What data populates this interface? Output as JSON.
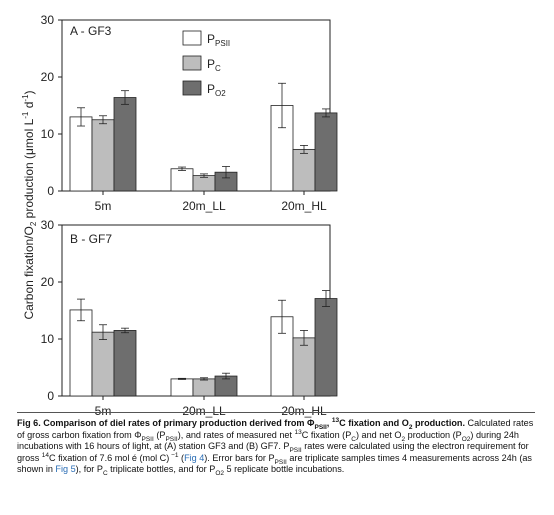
{
  "colors": {
    "P_PSII": "#ffffff",
    "P_C": "#bdbdbd",
    "P_O2": "#6e6e6e",
    "axis": "#222222"
  },
  "shared": {
    "ylabel_main": "Carbon fixation/O",
    "ylabel_sub": "2",
    "ylabel_tail": " production (μmol L",
    "ylabel_sup1": "-1",
    "ylabel_mid": " d",
    "ylabel_sup2": "-1",
    "ylabel_end": ")"
  },
  "legend": [
    {
      "key": "P_PSII",
      "main": "P",
      "sub": "PSII"
    },
    {
      "key": "P_C",
      "main": "P",
      "sub": "C"
    },
    {
      "key": "P_O2",
      "main": "P",
      "sub": "O2"
    }
  ],
  "chart_data": [
    {
      "type": "bar",
      "title": "A - GF3",
      "categories": [
        "5m",
        "20m_LL",
        "20m_HL"
      ],
      "ylim": [
        0,
        30
      ],
      "yticks": [
        "0",
        "10",
        "20",
        "30"
      ],
      "series": [
        {
          "name": "P_PSII",
          "values": [
            13.0,
            3.9,
            15.0
          ],
          "errors": [
            1.6,
            0.3,
            3.9
          ]
        },
        {
          "name": "P_C",
          "values": [
            12.5,
            2.7,
            7.3
          ],
          "errors": [
            0.7,
            0.3,
            0.7
          ]
        },
        {
          "name": "P_O2",
          "values": [
            16.4,
            3.3,
            13.7
          ],
          "errors": [
            1.2,
            1.0,
            0.7
          ]
        }
      ]
    },
    {
      "type": "bar",
      "title": "B - GF7",
      "categories": [
        "5m",
        "20m_LL",
        "20m_HL"
      ],
      "ylim": [
        0,
        30
      ],
      "yticks": [
        "0",
        "10",
        "20",
        "30"
      ],
      "series": [
        {
          "name": "P_PSII",
          "values": [
            15.1,
            3.0,
            13.9
          ],
          "errors": [
            1.9,
            0.1,
            2.9
          ]
        },
        {
          "name": "P_C",
          "values": [
            11.2,
            3.0,
            10.2
          ],
          "errors": [
            1.3,
            0.2,
            1.3
          ]
        },
        {
          "name": "P_O2",
          "values": [
            11.5,
            3.5,
            17.1
          ],
          "errors": [
            0.4,
            0.5,
            1.4
          ]
        }
      ]
    }
  ],
  "caption": {
    "title_pre": "Fig 6. Comparison of diel rates of primary production derived from Φ",
    "title_sub1": "PSII",
    "title_mid": ", ",
    "title_sup": "13",
    "title_post": "C fixation and O",
    "title_sub2": "2",
    "title_end": " production.",
    "s1": " Calculated rates of gross carbon fixation from Φ",
    "s1_sub": "PSII",
    "s2": " (P",
    "s2_sub": "PSII",
    "s3": "), and rates of measured net ",
    "s3_sup": "13",
    "s4": "C fixation (P",
    "s4_sub": "C",
    "s5": ") and net O",
    "s5_sub": "2",
    "s6": " production (P",
    "s6_sub": "O2",
    "s7": ") during 24h incubations with 16 hours of light, at (A) station GF3 and (B) GF7. P",
    "s7_sub": "PSII",
    "s8": " rates were calculated using the electron requirement for gross ",
    "s8_sup": "14",
    "s9": "C fixation of 7.6 mol é (mol C)",
    "s9_sup": " −1",
    "s10": " (",
    "link1": "Fig 4",
    "s11": "). Error bars for P",
    "s11_sub": "PSII",
    "s12": " are triplicate samples times 4 measurements across 24h (as shown in ",
    "link2": "Fig 5",
    "s13": "), for P",
    "s13_sub": "C",
    "s14": " triplicate bottles, and for P",
    "s14_sub": "O2",
    "s15": " 5 replicate bottle incubations."
  }
}
